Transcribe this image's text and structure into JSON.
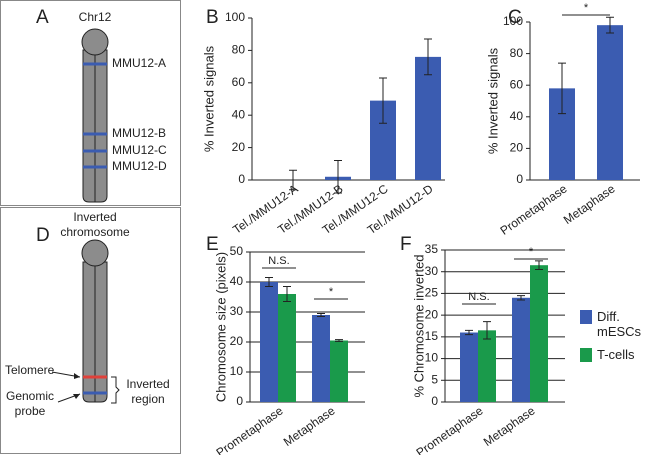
{
  "panels": [
    "A",
    "B",
    "C",
    "D",
    "E",
    "F"
  ],
  "diagrams": {
    "a": {
      "title": "Chr12",
      "bands": [
        "MMU12-A",
        "MMU12-B",
        "MMU12-C",
        "MMU12-D"
      ]
    },
    "d": {
      "title_lines": [
        "Inverted",
        "chromosome"
      ],
      "telomere": "Telomere",
      "probe_lines": [
        "Genomic",
        "probe"
      ],
      "region_lines": [
        "Inverted",
        "region"
      ]
    }
  },
  "chart_data": [
    {
      "type": "bar",
      "ylabel": "% Inverted signals",
      "categories": [
        "Tel./MMU12-A",
        "Tel./MMU12-B",
        "Tel./MMU12-C",
        "Tel./MMU12-D"
      ],
      "series": [
        {
          "color": "#3b5cb1",
          "values": [
            0,
            2,
            49,
            76
          ],
          "errors": [
            6,
            10,
            14,
            11
          ]
        }
      ],
      "ylim": [
        0,
        100
      ],
      "yticks": [
        0,
        20,
        40,
        60,
        80,
        100
      ],
      "grid": false,
      "annotations": []
    },
    {
      "type": "bar",
      "ylabel": "% Inverted signals",
      "categories": [
        "Prometaphase",
        "Metaphase"
      ],
      "series": [
        {
          "color": "#3b5cb1",
          "values": [
            58,
            98
          ],
          "errors": [
            16,
            5
          ]
        }
      ],
      "ylim": [
        0,
        100
      ],
      "yticks": [
        0,
        20,
        40,
        60,
        80,
        100
      ],
      "grid": false,
      "annotations": [
        "*"
      ]
    },
    {
      "type": "bar",
      "ylabel": "Chromosome size (pixels)",
      "categories": [
        "Prometaphase",
        "Metaphase"
      ],
      "series": [
        {
          "color": "#3b5cb1",
          "values": [
            40,
            29
          ],
          "errors": [
            1.5,
            0.5
          ]
        },
        {
          "color": "#1a9a4b",
          "values": [
            36,
            20.5
          ],
          "errors": [
            2.5,
            0.3
          ]
        }
      ],
      "ylim": [
        0,
        50
      ],
      "yticks": [
        0,
        10,
        20,
        30,
        40,
        50
      ],
      "grid": true,
      "annotations": [
        "N.S.",
        "*"
      ]
    },
    {
      "type": "bar",
      "ylabel": "% Chromosome inverted",
      "categories": [
        "Prometaphase",
        "Metaphase"
      ],
      "series": [
        {
          "name": "Diff. mESCs",
          "color": "#3b5cb1",
          "values": [
            16,
            24
          ],
          "errors": [
            0.5,
            0.5
          ]
        },
        {
          "name": "T-cells",
          "color": "#1a9a4b",
          "values": [
            16.5,
            31.5
          ],
          "errors": [
            2,
            1
          ]
        }
      ],
      "ylim": [
        0,
        35
      ],
      "yticks": [
        0,
        5,
        10,
        15,
        20,
        25,
        30,
        35
      ],
      "grid": true,
      "annotations": [
        "N.S.",
        "*"
      ]
    }
  ]
}
